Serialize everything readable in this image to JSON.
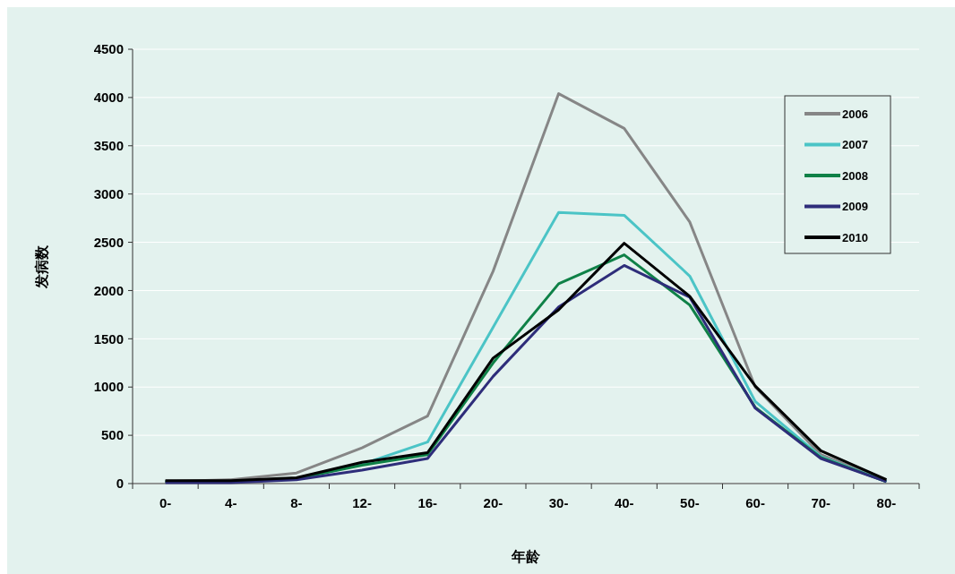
{
  "chart_data": {
    "type": "line",
    "xlabel": "年龄",
    "ylabel": "发病数",
    "categories": [
      "0-",
      "4-",
      "8-",
      "12-",
      "16-",
      "20-",
      "30-",
      "40-",
      "50-",
      "60-",
      "70-",
      "80-"
    ],
    "series": [
      {
        "name": "2006",
        "color": "#868686",
        "values": [
          20,
          40,
          110,
          370,
          700,
          2200,
          4040,
          3680,
          2710,
          1000,
          300,
          30
        ]
      },
      {
        "name": "2007",
        "color": "#4bc4c6",
        "values": [
          null,
          null,
          50,
          200,
          430,
          1620,
          2810,
          2780,
          2150,
          850,
          280,
          20
        ]
      },
      {
        "name": "2008",
        "color": "#0f8147",
        "values": [
          20,
          20,
          50,
          190,
          300,
          1250,
          2070,
          2370,
          1850,
          790,
          270,
          20
        ]
      },
      {
        "name": "2009",
        "color": "#2e2d7a",
        "values": [
          10,
          10,
          40,
          140,
          260,
          1110,
          1830,
          2260,
          1930,
          780,
          260,
          20
        ]
      },
      {
        "name": "2010",
        "color": "#000000",
        "values": [
          30,
          30,
          60,
          220,
          320,
          1300,
          1800,
          2490,
          1940,
          1010,
          340,
          40
        ]
      }
    ],
    "ylim": [
      0,
      4500
    ],
    "yticks": [
      0,
      500,
      1000,
      1500,
      2000,
      2500,
      3000,
      3500,
      4000,
      4500
    ],
    "grid": "y",
    "legend": "top right",
    "marker": "none",
    "line_style": "solid"
  }
}
